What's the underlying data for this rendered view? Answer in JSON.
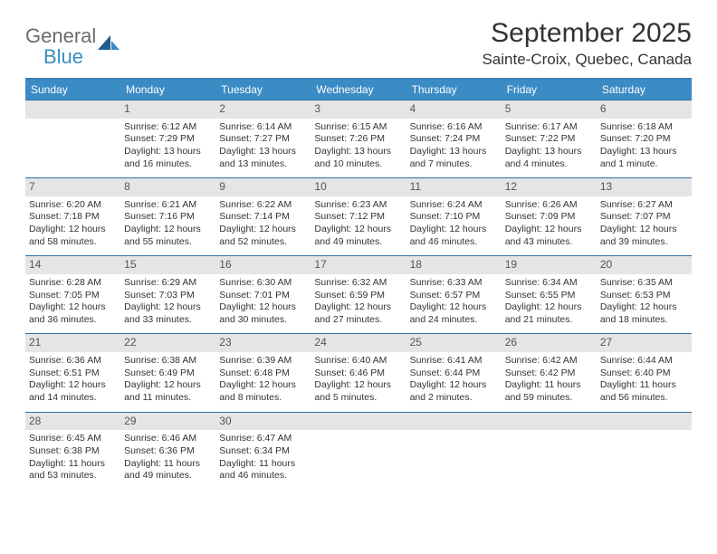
{
  "logo": {
    "general": "General",
    "blue": "Blue"
  },
  "title": {
    "month": "September 2025",
    "location": "Sainte-Croix, Quebec, Canada"
  },
  "dow": [
    "Sunday",
    "Monday",
    "Tuesday",
    "Wednesday",
    "Thursday",
    "Friday",
    "Saturday"
  ],
  "colors": {
    "header_bg": "#3b8bc4",
    "header_text": "#ffffff",
    "rule": "#2f6fa3",
    "daynum_bg": "#e5e5e5",
    "text": "#333333",
    "logo_gray": "#6b6b6b",
    "logo_blue": "#3b8bc4"
  },
  "grid_start_offset": 1,
  "days": [
    {
      "n": "1",
      "sr": "Sunrise: 6:12 AM",
      "ss": "Sunset: 7:29 PM",
      "d1": "Daylight: 13 hours",
      "d2": "and 16 minutes."
    },
    {
      "n": "2",
      "sr": "Sunrise: 6:14 AM",
      "ss": "Sunset: 7:27 PM",
      "d1": "Daylight: 13 hours",
      "d2": "and 13 minutes."
    },
    {
      "n": "3",
      "sr": "Sunrise: 6:15 AM",
      "ss": "Sunset: 7:26 PM",
      "d1": "Daylight: 13 hours",
      "d2": "and 10 minutes."
    },
    {
      "n": "4",
      "sr": "Sunrise: 6:16 AM",
      "ss": "Sunset: 7:24 PM",
      "d1": "Daylight: 13 hours",
      "d2": "and 7 minutes."
    },
    {
      "n": "5",
      "sr": "Sunrise: 6:17 AM",
      "ss": "Sunset: 7:22 PM",
      "d1": "Daylight: 13 hours",
      "d2": "and 4 minutes."
    },
    {
      "n": "6",
      "sr": "Sunrise: 6:18 AM",
      "ss": "Sunset: 7:20 PM",
      "d1": "Daylight: 13 hours",
      "d2": "and 1 minute."
    },
    {
      "n": "7",
      "sr": "Sunrise: 6:20 AM",
      "ss": "Sunset: 7:18 PM",
      "d1": "Daylight: 12 hours",
      "d2": "and 58 minutes."
    },
    {
      "n": "8",
      "sr": "Sunrise: 6:21 AM",
      "ss": "Sunset: 7:16 PM",
      "d1": "Daylight: 12 hours",
      "d2": "and 55 minutes."
    },
    {
      "n": "9",
      "sr": "Sunrise: 6:22 AM",
      "ss": "Sunset: 7:14 PM",
      "d1": "Daylight: 12 hours",
      "d2": "and 52 minutes."
    },
    {
      "n": "10",
      "sr": "Sunrise: 6:23 AM",
      "ss": "Sunset: 7:12 PM",
      "d1": "Daylight: 12 hours",
      "d2": "and 49 minutes."
    },
    {
      "n": "11",
      "sr": "Sunrise: 6:24 AM",
      "ss": "Sunset: 7:10 PM",
      "d1": "Daylight: 12 hours",
      "d2": "and 46 minutes."
    },
    {
      "n": "12",
      "sr": "Sunrise: 6:26 AM",
      "ss": "Sunset: 7:09 PM",
      "d1": "Daylight: 12 hours",
      "d2": "and 43 minutes."
    },
    {
      "n": "13",
      "sr": "Sunrise: 6:27 AM",
      "ss": "Sunset: 7:07 PM",
      "d1": "Daylight: 12 hours",
      "d2": "and 39 minutes."
    },
    {
      "n": "14",
      "sr": "Sunrise: 6:28 AM",
      "ss": "Sunset: 7:05 PM",
      "d1": "Daylight: 12 hours",
      "d2": "and 36 minutes."
    },
    {
      "n": "15",
      "sr": "Sunrise: 6:29 AM",
      "ss": "Sunset: 7:03 PM",
      "d1": "Daylight: 12 hours",
      "d2": "and 33 minutes."
    },
    {
      "n": "16",
      "sr": "Sunrise: 6:30 AM",
      "ss": "Sunset: 7:01 PM",
      "d1": "Daylight: 12 hours",
      "d2": "and 30 minutes."
    },
    {
      "n": "17",
      "sr": "Sunrise: 6:32 AM",
      "ss": "Sunset: 6:59 PM",
      "d1": "Daylight: 12 hours",
      "d2": "and 27 minutes."
    },
    {
      "n": "18",
      "sr": "Sunrise: 6:33 AM",
      "ss": "Sunset: 6:57 PM",
      "d1": "Daylight: 12 hours",
      "d2": "and 24 minutes."
    },
    {
      "n": "19",
      "sr": "Sunrise: 6:34 AM",
      "ss": "Sunset: 6:55 PM",
      "d1": "Daylight: 12 hours",
      "d2": "and 21 minutes."
    },
    {
      "n": "20",
      "sr": "Sunrise: 6:35 AM",
      "ss": "Sunset: 6:53 PM",
      "d1": "Daylight: 12 hours",
      "d2": "and 18 minutes."
    },
    {
      "n": "21",
      "sr": "Sunrise: 6:36 AM",
      "ss": "Sunset: 6:51 PM",
      "d1": "Daylight: 12 hours",
      "d2": "and 14 minutes."
    },
    {
      "n": "22",
      "sr": "Sunrise: 6:38 AM",
      "ss": "Sunset: 6:49 PM",
      "d1": "Daylight: 12 hours",
      "d2": "and 11 minutes."
    },
    {
      "n": "23",
      "sr": "Sunrise: 6:39 AM",
      "ss": "Sunset: 6:48 PM",
      "d1": "Daylight: 12 hours",
      "d2": "and 8 minutes."
    },
    {
      "n": "24",
      "sr": "Sunrise: 6:40 AM",
      "ss": "Sunset: 6:46 PM",
      "d1": "Daylight: 12 hours",
      "d2": "and 5 minutes."
    },
    {
      "n": "25",
      "sr": "Sunrise: 6:41 AM",
      "ss": "Sunset: 6:44 PM",
      "d1": "Daylight: 12 hours",
      "d2": "and 2 minutes."
    },
    {
      "n": "26",
      "sr": "Sunrise: 6:42 AM",
      "ss": "Sunset: 6:42 PM",
      "d1": "Daylight: 11 hours",
      "d2": "and 59 minutes."
    },
    {
      "n": "27",
      "sr": "Sunrise: 6:44 AM",
      "ss": "Sunset: 6:40 PM",
      "d1": "Daylight: 11 hours",
      "d2": "and 56 minutes."
    },
    {
      "n": "28",
      "sr": "Sunrise: 6:45 AM",
      "ss": "Sunset: 6:38 PM",
      "d1": "Daylight: 11 hours",
      "d2": "and 53 minutes."
    },
    {
      "n": "29",
      "sr": "Sunrise: 6:46 AM",
      "ss": "Sunset: 6:36 PM",
      "d1": "Daylight: 11 hours",
      "d2": "and 49 minutes."
    },
    {
      "n": "30",
      "sr": "Sunrise: 6:47 AM",
      "ss": "Sunset: 6:34 PM",
      "d1": "Daylight: 11 hours",
      "d2": "and 46 minutes."
    }
  ]
}
